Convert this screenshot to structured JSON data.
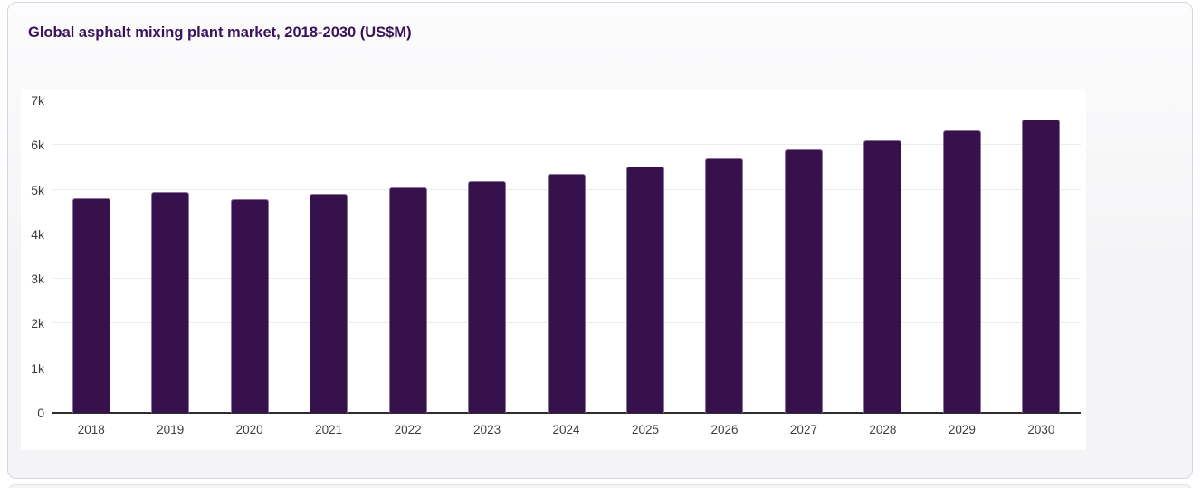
{
  "card": {
    "title": "Global asphalt mixing plant market, 2018-2030 (US$M)"
  },
  "chart_data": {
    "type": "bar",
    "title": "Global asphalt mixing plant market, 2018-2030 (US$M)",
    "unit": "US$M",
    "categories": [
      "2018",
      "2019",
      "2020",
      "2021",
      "2022",
      "2023",
      "2024",
      "2025",
      "2026",
      "2027",
      "2028",
      "2029",
      "2030"
    ],
    "values": [
      4800,
      4950,
      4780,
      4920,
      5050,
      5200,
      5350,
      5520,
      5710,
      5900,
      6110,
      6330,
      6570
    ],
    "xlabel": "",
    "ylabel": "",
    "ylim": [
      0,
      7000
    ],
    "ytick_interval": 1000,
    "ytick_labels": [
      "0",
      "1k",
      "2k",
      "3k",
      "4k",
      "5k",
      "6k",
      "7k"
    ],
    "grid": true,
    "legend": "none"
  },
  "colors": {
    "bar": "#36114b",
    "title_text": "#38125a",
    "axis_line": "#2d2d2d",
    "grid_line": "#ececee",
    "tick_text": "#3c3c3c",
    "card_border": "#d9d2e4",
    "panel_bg": "#ffffff"
  }
}
